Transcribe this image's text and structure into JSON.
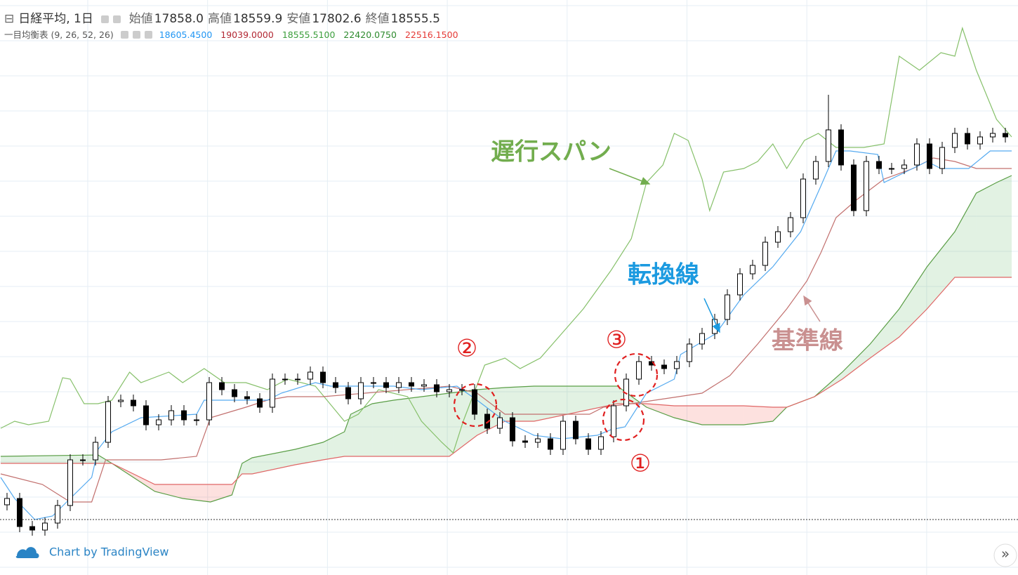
{
  "chart_data": {
    "type": "candlestick",
    "title": "日経平均, 1日",
    "ohlc_legend": [
      {
        "label": "始値",
        "value": "17858.0"
      },
      {
        "label": "高値",
        "value": "18559.9"
      },
      {
        "label": "安値",
        "value": "17802.6"
      },
      {
        "label": "終値",
        "value": "18555.5"
      }
    ],
    "indicator": {
      "title": "一目均衡表 (9, 26, 52, 26)",
      "values": [
        {
          "value": "18605.4500",
          "color": "#2196f3"
        },
        {
          "value": "19039.0000",
          "color": "#b22833"
        },
        {
          "value": "18555.5100",
          "color": "#3c9e3c"
        },
        {
          "value": "22420.0750",
          "color": "#2d8a2d"
        },
        {
          "value": "22516.1500",
          "color": "#e53935"
        }
      ]
    },
    "xlim": [
      -0.5,
      79.5
    ],
    "ylim": [
      0,
      819
    ],
    "grid": true,
    "up_color": "#ffffff",
    "down_color": "#000000",
    "open": [
      100,
      109,
      69,
      64,
      74,
      99,
      164,
      164,
      189,
      247,
      249,
      241,
      214,
      221,
      234,
      221,
      221,
      274,
      264,
      254,
      251,
      239,
      279,
      279,
      279,
      289,
      274,
      267,
      251,
      274,
      274,
      267,
      274,
      269,
      271,
      261,
      264,
      264,
      229,
      209,
      224,
      191,
      189,
      194,
      179,
      219,
      194,
      179,
      197,
      241,
      279,
      304,
      299,
      294,
      304,
      329,
      344,
      364,
      399,
      429,
      441,
      474,
      489,
      509,
      564,
      589,
      634,
      584,
      519,
      589,
      579,
      579,
      584,
      614,
      579,
      609,
      629,
      614,
      624,
      629
    ],
    "high": [
      117,
      117,
      77,
      82,
      107,
      172,
      172,
      197,
      255,
      257,
      257,
      249,
      229,
      242,
      242,
      229,
      282,
      282,
      272,
      262,
      259,
      287,
      287,
      287,
      297,
      297,
      282,
      275,
      282,
      282,
      282,
      282,
      282,
      279,
      279,
      272,
      272,
      272,
      237,
      232,
      232,
      199,
      202,
      202,
      227,
      227,
      202,
      205,
      249,
      287,
      312,
      312,
      307,
      312,
      337,
      352,
      372,
      407,
      437,
      449,
      482,
      497,
      517,
      572,
      597,
      684,
      642,
      592,
      597,
      597,
      587,
      592,
      622,
      622,
      617,
      637,
      637,
      632,
      637,
      637
    ],
    "low": [
      92,
      61,
      56,
      56,
      66,
      91,
      156,
      156,
      181,
      239,
      233,
      206,
      206,
      213,
      213,
      213,
      213,
      256,
      246,
      243,
      231,
      231,
      271,
      271,
      271,
      266,
      259,
      243,
      243,
      266,
      259,
      259,
      261,
      261,
      253,
      253,
      256,
      221,
      201,
      201,
      183,
      181,
      181,
      171,
      171,
      186,
      171,
      171,
      189,
      233,
      271,
      291,
      286,
      286,
      296,
      321,
      336,
      356,
      391,
      421,
      433,
      466,
      481,
      501,
      556,
      581,
      576,
      511,
      511,
      571,
      571,
      571,
      576,
      571,
      571,
      601,
      606,
      606,
      616,
      616
    ],
    "close": [
      109,
      69,
      64,
      74,
      99,
      164,
      164,
      189,
      247,
      249,
      241,
      214,
      221,
      234,
      221,
      221,
      274,
      264,
      254,
      251,
      239,
      279,
      279,
      279,
      289,
      274,
      267,
      251,
      274,
      274,
      267,
      274,
      269,
      271,
      261,
      264,
      264,
      229,
      209,
      224,
      191,
      189,
      194,
      179,
      219,
      194,
      179,
      197,
      241,
      279,
      304,
      299,
      294,
      304,
      329,
      344,
      364,
      399,
      429,
      441,
      474,
      489,
      509,
      564,
      589,
      634,
      584,
      519,
      589,
      579,
      579,
      584,
      614,
      579,
      609,
      629,
      614,
      624,
      629,
      624
    ],
    "cloud": {
      "x": [
        -0.5,
        7.2,
        8.3,
        10,
        11.7,
        13.9,
        16.1,
        17.8,
        18.6,
        19.4,
        22.8,
        25,
        26.7,
        27.2,
        28.9,
        30.6,
        32.8,
        35,
        37.2,
        39.4,
        41.7,
        48.3,
        50.6,
        52.8,
        55,
        58.3,
        60.6,
        61.7,
        63.9,
        66.1,
        68.3,
        70.6,
        72.8,
        75,
        76.7,
        78.3,
        79.5
      ],
      "span_a": {
        "color": "#5a9e46",
        "values": [
          169,
          171,
          159,
          139,
          119,
          109,
          104,
          114,
          159,
          167,
          179,
          189,
          204,
          229,
          244,
          249,
          254,
          259,
          264,
          267,
          269,
          269,
          239,
          224,
          214,
          214,
          219,
          239,
          254,
          289,
          329,
          379,
          439,
          489,
          544,
          559,
          569
        ]
      },
      "span_b": {
        "color": "#e06666",
        "values": [
          159,
          159,
          159,
          144,
          129,
          129,
          129,
          129,
          144,
          144,
          157,
          164,
          169,
          169,
          169,
          169,
          169,
          169,
          199,
          219,
          219,
          244,
          244,
          241,
          241,
          241,
          239,
          239,
          254,
          279,
          309,
          339,
          379,
          424,
          424,
          424,
          424
        ]
      },
      "up_fill": "rgba(76,175,80,0.16)",
      "down_fill": "rgba(244,67,54,0.16)"
    },
    "lines": [
      {
        "name": "遅行スパン",
        "color": "#86c06a",
        "x": [
          -0.5,
          0.6,
          1.7,
          3.3,
          4.4,
          5,
          6.1,
          7.2,
          8.3,
          9.7,
          10.6,
          12.8,
          13.9,
          15.6,
          17.2,
          18.9,
          20.6,
          22.2,
          24.4,
          26.7,
          27.8,
          29.4,
          31.7,
          32.8,
          34.4,
          35.3,
          36.1,
          37.8,
          39.4,
          40.6,
          42.2,
          43.9,
          45.6,
          47.8,
          49.4,
          50.6,
          51.9,
          52.8,
          53.9,
          55,
          55.6,
          56.7,
          58.3,
          59.4,
          60.6,
          61.7,
          63.1,
          64.2,
          65.6,
          67.8,
          69.4,
          70.6,
          72.2,
          73.9,
          75,
          75.6,
          76.7,
          78.3,
          79.5
        ],
        "values": [
          209,
          219,
          214,
          219,
          281,
          279,
          244,
          244,
          249,
          289,
          274,
          289,
          274,
          294,
          274,
          274,
          264,
          279,
          269,
          219,
          229,
          264,
          254,
          219,
          189,
          174,
          219,
          299,
          309,
          294,
          309,
          344,
          379,
          434,
          479,
          559,
          584,
          629,
          619,
          564,
          519,
          574,
          579,
          589,
          614,
          579,
          619,
          629,
          609,
          609,
          614,
          739,
          719,
          744,
          739,
          779,
          719,
          649,
          624
        ]
      },
      {
        "name": "基準線",
        "color": "#c2706e",
        "x": [
          -0.5,
          2.8,
          5,
          6.7,
          7.8,
          12.2,
          15,
          16.1,
          18.9,
          20.6,
          22.2,
          25,
          35,
          37.2,
          39.4,
          46.1,
          47.2,
          49.4,
          55,
          57.2,
          59.4,
          61.7,
          63.3,
          64.4,
          65.6,
          67.2,
          68.3,
          69.4,
          71.7,
          73.3,
          75,
          76.7,
          79.5
        ],
        "values": [
          144,
          129,
          104,
          104,
          164,
          164,
          169,
          224,
          239,
          249,
          254,
          254,
          269,
          259,
          229,
          229,
          239,
          244,
          259,
          284,
          329,
          379,
          419,
          459,
          509,
          534,
          549,
          564,
          579,
          594,
          589,
          579,
          579
        ]
      },
      {
        "name": "転換線",
        "color": "#55aaf0",
        "x": [
          -0.5,
          0.6,
          2.2,
          3.6,
          5,
          6.7,
          7.2,
          8.3,
          10.6,
          15,
          15.6,
          20.6,
          21.7,
          24.4,
          25.6,
          30.6,
          32.8,
          35.6,
          37.2,
          39.4,
          41.7,
          43.9,
          46.7,
          47.8,
          48.9,
          50.6,
          52.8,
          53.3,
          56.1,
          58.3,
          60.6,
          62.8,
          64.4,
          65.6,
          66.7,
          68.9,
          69.4,
          71.1,
          72.8,
          73.9,
          76.1,
          77.8,
          79.5
        ],
        "values": [
          139,
          109,
          79,
          84,
          109,
          139,
          179,
          204,
          224,
          229,
          249,
          249,
          259,
          274,
          269,
          269,
          264,
          269,
          249,
          219,
          199,
          194,
          199,
          207,
          211,
          259,
          279,
          314,
          344,
          399,
          439,
          489,
          554,
          604,
          604,
          599,
          559,
          574,
          589,
          579,
          579,
          604,
          604
        ]
      }
    ],
    "price_line": 79,
    "markers": [
      "①",
      "②",
      "③"
    ],
    "watermark": "Chart by TradingView",
    "scroll_button": "»"
  }
}
